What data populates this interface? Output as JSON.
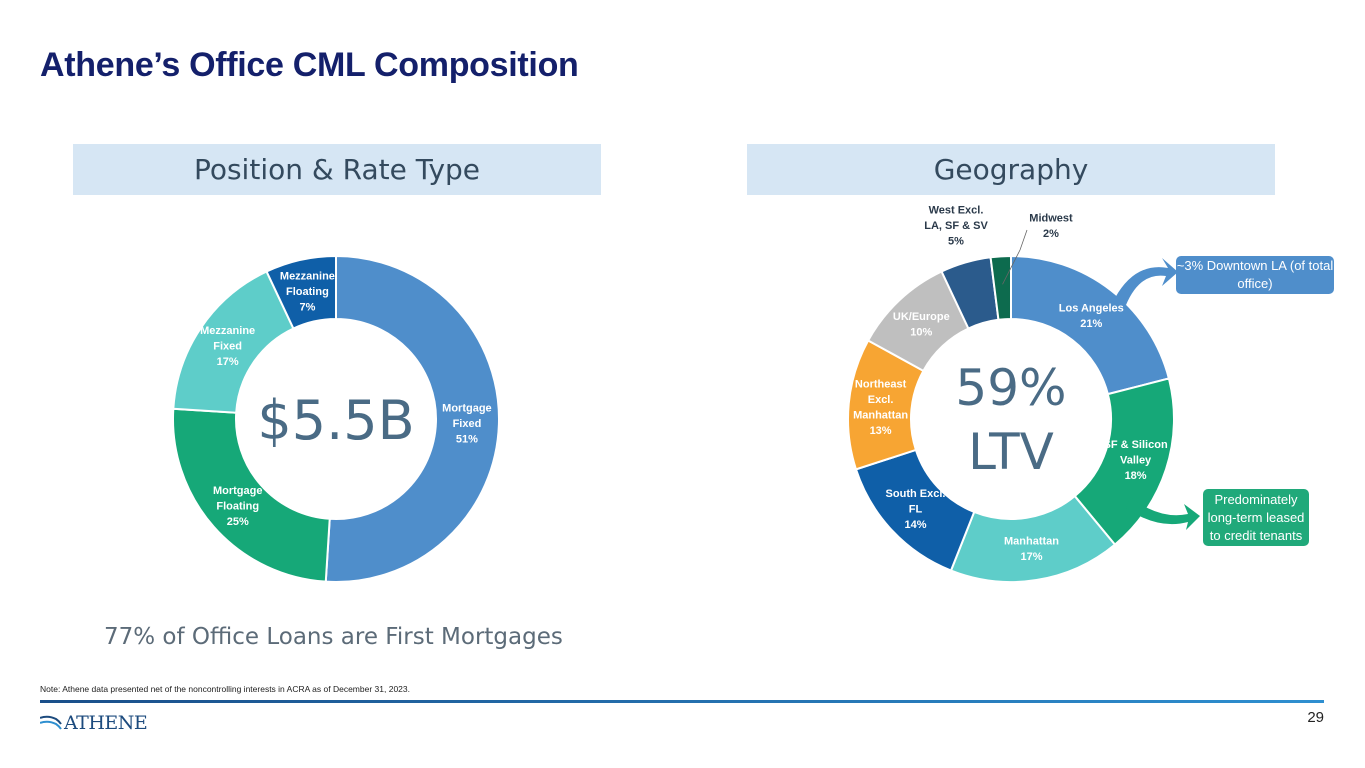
{
  "title": "Athene’s Office CML Composition",
  "left_header": "Position & Rate Type",
  "right_header": "Geography",
  "caption": "77% of Office Loans are First Mortgages",
  "note": "Note: Athene data presented net of the noncontrolling interests in ACRA as of December 31, 2023.",
  "page_number": "29",
  "logo_text": "ATHENE",
  "callouts": {
    "downtown": "~3% Downtown LA (of total office)",
    "credit": "Predominately long-term leased to credit tenants"
  },
  "colors": {
    "title": "#14206b",
    "header_bg": "#d6e6f4",
    "center_text": "#4a6b85"
  },
  "chart_data": [
    {
      "type": "pie",
      "variant": "donut",
      "title": "Position & Rate Type",
      "center_label": "$5.5B",
      "slices": [
        {
          "label": [
            "Mortgage",
            "Fixed"
          ],
          "value": 51,
          "value_label": "51%",
          "color": "#4f8ecb"
        },
        {
          "label": [
            "Mortgage",
            "Floating"
          ],
          "value": 25,
          "value_label": "25%",
          "color": "#16a878"
        },
        {
          "label": [
            "Mezzanine",
            "Fixed"
          ],
          "value": 17,
          "value_label": "17%",
          "color": "#5ecdc9"
        },
        {
          "label": [
            "Mezzanine",
            "Floating"
          ],
          "value": 7,
          "value_label": "7%",
          "color": "#0f5fa8"
        }
      ]
    },
    {
      "type": "pie",
      "variant": "donut",
      "title": "Geography",
      "center_label": [
        "59%",
        "LTV"
      ],
      "slices": [
        {
          "label": [
            "Los Angeles"
          ],
          "value": 21,
          "value_label": "21%",
          "color": "#4f8ecb"
        },
        {
          "label": [
            "SF & Silicon",
            "Valley"
          ],
          "value": 18,
          "value_label": "18%",
          "color": "#16a878"
        },
        {
          "label": [
            "Manhattan"
          ],
          "value": 17,
          "value_label": "17%",
          "color": "#5ecdc9"
        },
        {
          "label": [
            "South Excl.",
            "FL"
          ],
          "value": 14,
          "value_label": "14%",
          "color": "#0f5fa8"
        },
        {
          "label": [
            "Northeast",
            "Excl.",
            "Manhattan"
          ],
          "value": 13,
          "value_label": "13%",
          "color": "#f7a533"
        },
        {
          "label": [
            "UK/Europe"
          ],
          "value": 10,
          "value_label": "10%",
          "color": "#bfbfbf"
        },
        {
          "label": [
            "West Excl.",
            "LA, SF & SV"
          ],
          "value": 5,
          "value_label": "5%",
          "color": "#2b5b8c"
        },
        {
          "label": [
            "Midwest"
          ],
          "value": 2,
          "value_label": "2%",
          "color": "#0d6b4e"
        }
      ]
    }
  ]
}
